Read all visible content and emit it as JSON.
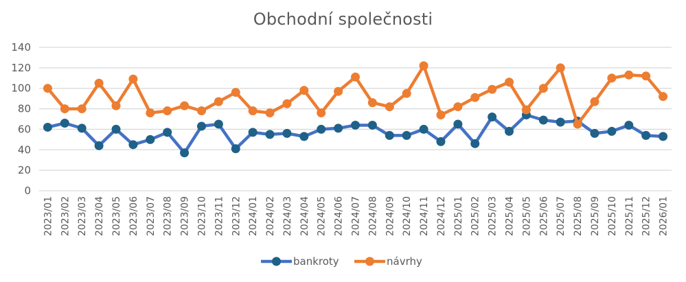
{
  "chart_data": {
    "type": "line",
    "title": "Obchodní společnosti",
    "xlabel": "",
    "ylabel": "",
    "ylim": [
      0,
      140
    ],
    "yticks": [
      0,
      20,
      40,
      60,
      80,
      100,
      120,
      140
    ],
    "grid": true,
    "legend_position": "bottom",
    "categories": [
      "2023/01",
      "2023/02",
      "2023/03",
      "2023/04",
      "2023/05",
      "2023/06",
      "2023/07",
      "2023/08",
      "2023/09",
      "2023/10",
      "2023/11",
      "2023/12",
      "2024/01",
      "2024/02",
      "2024/03",
      "2024/04",
      "2024/05",
      "2024/06",
      "2024/07",
      "2024/08",
      "2024/09",
      "2024/10",
      "2024/11",
      "2024/12",
      "2025/01",
      "2025/02",
      "2025/03",
      "2025/04",
      "2025/05",
      "2025/06",
      "2025/07",
      "2025/08",
      "2025/09",
      "2025/10",
      "2025/11",
      "2025/12",
      "2026/01"
    ],
    "series": [
      {
        "name": "bankroty",
        "line_color": "#4472C4",
        "marker_color": "#1F6188",
        "values": [
          62,
          66,
          61,
          44,
          60,
          45,
          50,
          57,
          37,
          63,
          65,
          41,
          57,
          55,
          56,
          53,
          60,
          61,
          64,
          64,
          54,
          54,
          60,
          48,
          65,
          46,
          72,
          58,
          74,
          69,
          67,
          68,
          56,
          58,
          64,
          54,
          53
        ]
      },
      {
        "name": "návrhy",
        "line_color": "#ED7D31",
        "marker_color": "#ED7D31",
        "values": [
          100,
          80,
          80,
          105,
          83,
          109,
          76,
          78,
          83,
          78,
          87,
          96,
          78,
          76,
          85,
          98,
          76,
          97,
          111,
          86,
          82,
          95,
          122,
          74,
          82,
          91,
          99,
          106,
          79,
          100,
          120,
          65,
          87,
          110,
          113,
          112,
          92
        ]
      }
    ]
  },
  "colors": {
    "gridline": "#D9D9D9",
    "text": "#595959"
  }
}
